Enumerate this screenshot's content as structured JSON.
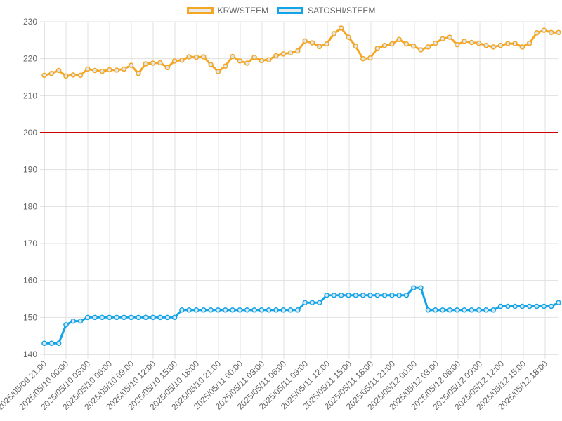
{
  "legend": [
    {
      "label": "KRW/STEEM",
      "color": "#f5a623"
    },
    {
      "label": "SATOSHI/STEEM",
      "color": "#12a4e8"
    }
  ],
  "chart_data": {
    "type": "line",
    "title": "",
    "xlabel": "",
    "ylabel": "",
    "ylim": [
      140,
      230
    ],
    "y_ticks": [
      140,
      150,
      160,
      170,
      180,
      190,
      200,
      210,
      220,
      230
    ],
    "grid": true,
    "legend_position": "top",
    "x_tick_labels": [
      "2025/05/09 21:00",
      "2025/05/10 00:00",
      "2025/05/10 03:00",
      "2025/05/10 06:00",
      "2025/05/10 09:00",
      "2025/05/10 12:00",
      "2025/05/10 15:00",
      "2025/05/10 18:00",
      "2025/05/10 21:00",
      "2025/05/11 00:00",
      "2025/05/11 03:00",
      "2025/05/11 06:00",
      "2025/05/11 09:00",
      "2025/05/11 12:00",
      "2025/05/11 15:00",
      "2025/05/11 18:00",
      "2025/05/11 21:00",
      "2025/05/12 00:00",
      "2025/05/12 03:00",
      "2025/05/12 06:00",
      "2025/05/12 09:00",
      "2025/05/12 12:00",
      "2025/05/12 15:00",
      "2025/05/12 18:00"
    ],
    "reference_line": {
      "value": 200,
      "color": "#cc0000"
    },
    "series": [
      {
        "name": "KRW/STEEM",
        "color": "#f5a623",
        "values": [
          215.5,
          216,
          216.8,
          215.3,
          215.6,
          215.5,
          217.2,
          216.8,
          216.6,
          217,
          216.9,
          217.2,
          218.2,
          216,
          218.6,
          218.8,
          218.9,
          217.6,
          219.4,
          219.6,
          220.5,
          220.4,
          220.5,
          218.4,
          216.5,
          218,
          220.6,
          219.4,
          218.8,
          220.4,
          219.5,
          219.7,
          220.8,
          221.3,
          221.6,
          222.1,
          224.8,
          224.3,
          223.3,
          224,
          226.8,
          228.3,
          225.8,
          223.4,
          220,
          220.2,
          222.8,
          223.6,
          224,
          225.2,
          224,
          223.4,
          222.4,
          223.2,
          224.2,
          225.4,
          225.8,
          223.8,
          224.7,
          224.4,
          224.2,
          223.6,
          223.2,
          223.6,
          224.1,
          224.1,
          223.2,
          224.2,
          227,
          227.7,
          227.1,
          227.1
        ]
      },
      {
        "name": "SATOSHI/STEEM",
        "color": "#12a4e8",
        "values": [
          143,
          143,
          143,
          148,
          149,
          149,
          150,
          150,
          150,
          150,
          150,
          150,
          150,
          150,
          150,
          150,
          150,
          150,
          150,
          152,
          152,
          152,
          152,
          152,
          152,
          152,
          152,
          152,
          152,
          152,
          152,
          152,
          152,
          152,
          152,
          152,
          154,
          154,
          154,
          156,
          156,
          156,
          156,
          156,
          156,
          156,
          156,
          156,
          156,
          156,
          156,
          158,
          158,
          152,
          152,
          152,
          152,
          152,
          152,
          152,
          152,
          152,
          152,
          153,
          153,
          153,
          153,
          153,
          153,
          153,
          153,
          154
        ]
      }
    ]
  }
}
